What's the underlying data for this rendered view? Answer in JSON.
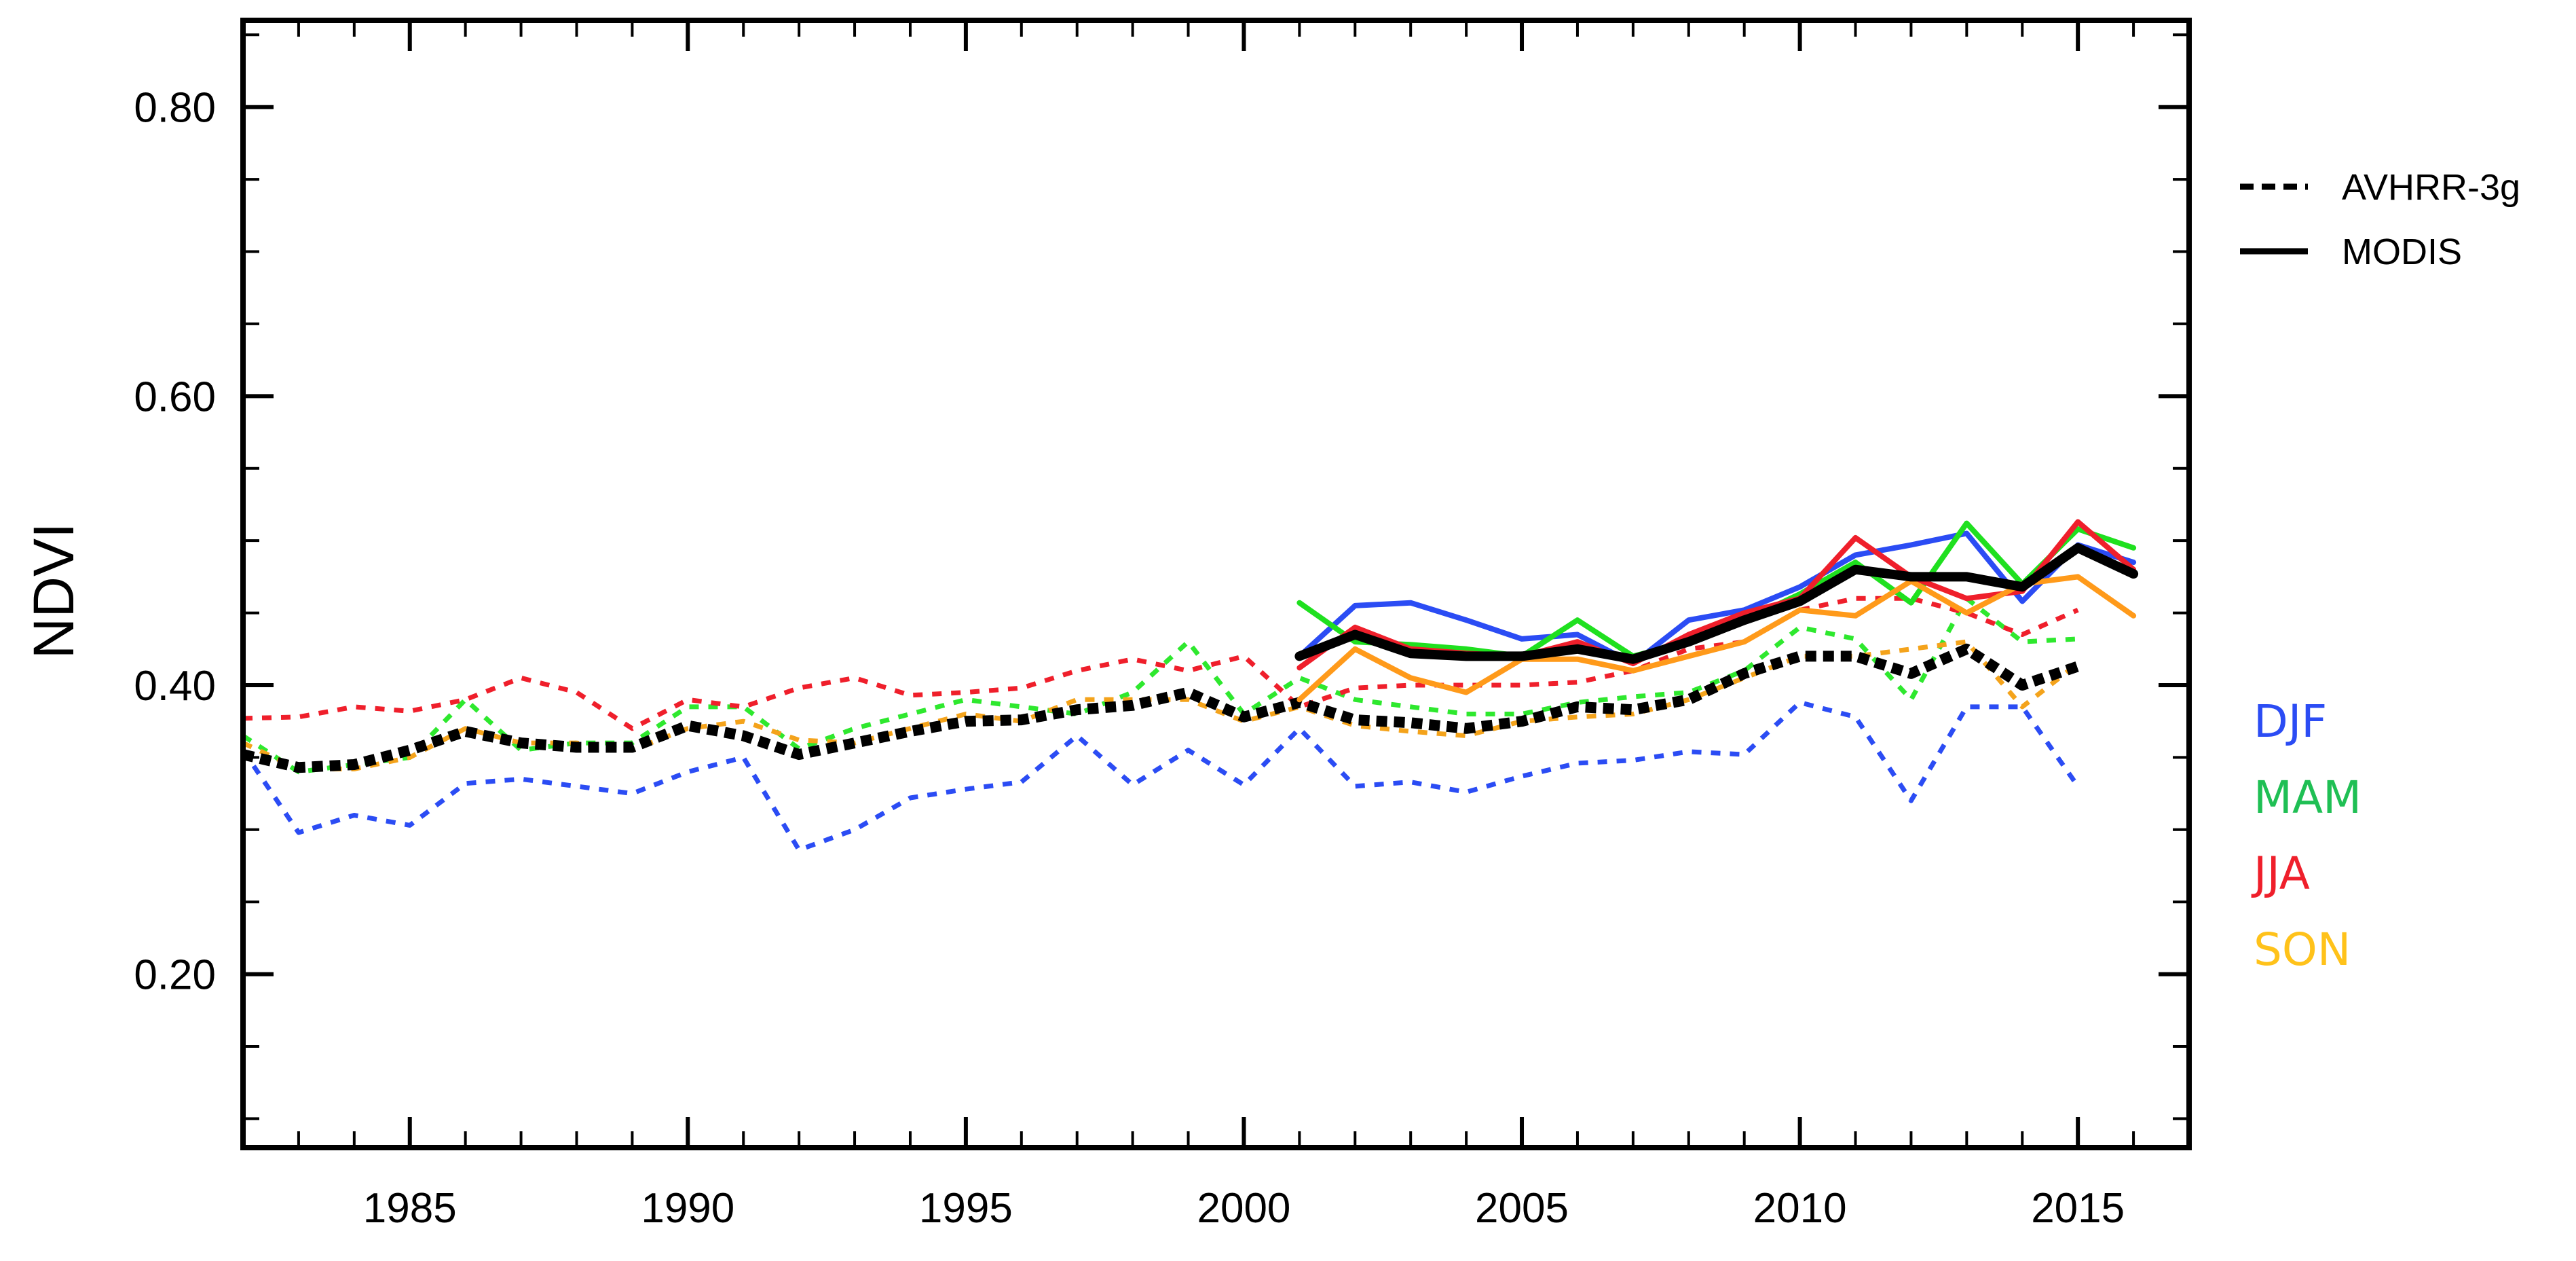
{
  "chart_data": {
    "type": "line",
    "title": "",
    "xlabel": "",
    "ylabel": "NDVI",
    "xlim": [
      1982,
      2017
    ],
    "ylim": [
      0.08,
      0.86
    ],
    "x_ticks": [
      1985,
      1990,
      1995,
      2000,
      2005,
      2010,
      2015
    ],
    "x_tick_labels": [
      "1985",
      "1990",
      "1995",
      "2000",
      "2005",
      "2010",
      "2015"
    ],
    "y_ticks": [
      0.2,
      0.4,
      0.6,
      0.8
    ],
    "y_tick_labels": [
      "0.20",
      "0.40",
      "0.60",
      "0.80"
    ],
    "y_minor_ticks": [
      0.1,
      0.15,
      0.25,
      0.3,
      0.35,
      0.45,
      0.5,
      0.55,
      0.65,
      0.7,
      0.75,
      0.85
    ],
    "grid": false,
    "legend": {
      "placement": "right",
      "entries": [
        {
          "label": "AVHRR-3g",
          "style": "dashed"
        },
        {
          "label": "MODIS",
          "style": "solid"
        }
      ]
    },
    "seasons": [
      {
        "label": "DJF",
        "color": "#2b4cf4"
      },
      {
        "label": "MAM",
        "color": "#1fbf54"
      },
      {
        "label": "JJA",
        "color": "#ef1f2b"
      },
      {
        "label": "SON",
        "color": "#ffc21a"
      }
    ],
    "series": [
      {
        "name": "AVHRR-3g DJF",
        "style": "dashed",
        "color": "#2b4cf4",
        "x": [
          1982,
          1983,
          1984,
          1985,
          1986,
          1987,
          1988,
          1989,
          1990,
          1991,
          1992,
          1993,
          1994,
          1995,
          1996,
          1997,
          1998,
          1999,
          2000,
          2001,
          2002,
          2003,
          2004,
          2005,
          2006,
          2007,
          2008,
          2009,
          2010,
          2011,
          2012,
          2013,
          2014,
          2015
        ],
        "values": [
          0.355,
          0.298,
          0.31,
          0.303,
          0.332,
          0.335,
          0.33,
          0.325,
          0.34,
          0.35,
          0.286,
          0.3,
          0.322,
          0.328,
          0.333,
          0.365,
          0.331,
          0.355,
          0.331,
          0.37,
          0.33,
          0.333,
          0.326,
          0.337,
          0.346,
          0.348,
          0.354,
          0.352,
          0.388,
          0.378,
          0.32,
          0.385,
          0.385,
          0.33
        ]
      },
      {
        "name": "AVHRR-3g MAM",
        "style": "dashed",
        "color": "#2ee82e",
        "x": [
          1982,
          1983,
          1984,
          1985,
          1986,
          1987,
          1988,
          1989,
          1990,
          1991,
          1992,
          1993,
          1994,
          1995,
          1996,
          1997,
          1998,
          1999,
          2000,
          2001,
          2002,
          2003,
          2004,
          2005,
          2006,
          2007,
          2008,
          2009,
          2010,
          2011,
          2012,
          2013,
          2014,
          2015
        ],
        "values": [
          0.365,
          0.34,
          0.345,
          0.35,
          0.39,
          0.355,
          0.36,
          0.36,
          0.385,
          0.385,
          0.356,
          0.37,
          0.38,
          0.39,
          0.385,
          0.38,
          0.395,
          0.43,
          0.38,
          0.405,
          0.39,
          0.385,
          0.38,
          0.38,
          0.388,
          0.392,
          0.395,
          0.41,
          0.44,
          0.432,
          0.39,
          0.46,
          0.43,
          0.432
        ]
      },
      {
        "name": "AVHRR-3g JJA",
        "style": "dashed",
        "color": "#ef1f2b",
        "x": [
          1982,
          1983,
          1984,
          1985,
          1986,
          1987,
          1988,
          1989,
          1990,
          1991,
          1992,
          1993,
          1994,
          1995,
          1996,
          1997,
          1998,
          1999,
          2000,
          2001,
          2002,
          2003,
          2004,
          2005,
          2006,
          2007,
          2008,
          2009,
          2010,
          2011,
          2012,
          2013,
          2014,
          2015
        ],
        "values": [
          0.377,
          0.378,
          0.385,
          0.382,
          0.39,
          0.405,
          0.395,
          0.37,
          0.39,
          0.385,
          0.398,
          0.405,
          0.393,
          0.395,
          0.398,
          0.41,
          0.418,
          0.41,
          0.42,
          0.385,
          0.398,
          0.4,
          0.4,
          0.4,
          0.402,
          0.41,
          0.425,
          0.43,
          0.452,
          0.46,
          0.46,
          0.45,
          0.435,
          0.452
        ]
      },
      {
        "name": "AVHRR-3g SON",
        "style": "dashed",
        "color": "#f4a31b",
        "x": [
          1982,
          1983,
          1984,
          1985,
          1986,
          1987,
          1988,
          1989,
          1990,
          1991,
          1992,
          1993,
          1994,
          1995,
          1996,
          1997,
          1998,
          1999,
          2000,
          2001,
          2002,
          2003,
          2004,
          2005,
          2006,
          2007,
          2008,
          2009,
          2010,
          2011,
          2012,
          2013,
          2014,
          2015
        ],
        "values": [
          0.36,
          0.342,
          0.342,
          0.35,
          0.37,
          0.36,
          0.36,
          0.355,
          0.37,
          0.375,
          0.362,
          0.36,
          0.37,
          0.38,
          0.375,
          0.39,
          0.39,
          0.39,
          0.375,
          0.385,
          0.372,
          0.368,
          0.365,
          0.375,
          0.378,
          0.38,
          0.39,
          0.405,
          0.42,
          0.42,
          0.425,
          0.43,
          0.385,
          0.415
        ]
      },
      {
        "name": "AVHRR-3g Annual",
        "style": "dashed-bold",
        "color": "#000000",
        "x": [
          1982,
          1983,
          1984,
          1985,
          1986,
          1987,
          1988,
          1989,
          1990,
          1991,
          1992,
          1993,
          1994,
          1995,
          1996,
          1997,
          1998,
          1999,
          2000,
          2001,
          2002,
          2003,
          2004,
          2005,
          2006,
          2007,
          2008,
          2009,
          2010,
          2011,
          2012,
          2013,
          2014,
          2015
        ],
        "values": [
          0.352,
          0.343,
          0.345,
          0.355,
          0.368,
          0.36,
          0.357,
          0.357,
          0.372,
          0.365,
          0.352,
          0.36,
          0.368,
          0.375,
          0.376,
          0.383,
          0.386,
          0.395,
          0.378,
          0.388,
          0.376,
          0.374,
          0.37,
          0.375,
          0.385,
          0.383,
          0.39,
          0.408,
          0.42,
          0.42,
          0.408,
          0.425,
          0.4,
          0.413
        ]
      },
      {
        "name": "MODIS DJF",
        "style": "solid",
        "color": "#2b4cf4",
        "x": [
          2001,
          2002,
          2003,
          2004,
          2005,
          2006,
          2007,
          2008,
          2009,
          2010,
          2011,
          2012,
          2013,
          2014,
          2015,
          2016
        ],
        "values": [
          0.42,
          0.455,
          0.457,
          0.445,
          0.432,
          0.435,
          0.415,
          0.445,
          0.452,
          0.468,
          0.49,
          0.497,
          0.505,
          0.458,
          0.497,
          0.485
        ]
      },
      {
        "name": "MODIS MAM",
        "style": "solid",
        "color": "#1fe01f",
        "x": [
          2001,
          2002,
          2003,
          2004,
          2005,
          2006,
          2007,
          2008,
          2009,
          2010,
          2011,
          2012,
          2013,
          2014,
          2015,
          2016
        ],
        "values": [
          0.457,
          0.43,
          0.428,
          0.425,
          0.42,
          0.445,
          0.42,
          0.43,
          0.445,
          0.463,
          0.485,
          0.457,
          0.512,
          0.47,
          0.508,
          0.495
        ]
      },
      {
        "name": "MODIS JJA",
        "style": "solid",
        "color": "#ef1f2b",
        "x": [
          2001,
          2002,
          2003,
          2004,
          2005,
          2006,
          2007,
          2008,
          2009,
          2010,
          2011,
          2012,
          2013,
          2014,
          2015,
          2016
        ],
        "values": [
          0.412,
          0.44,
          0.425,
          0.422,
          0.42,
          0.43,
          0.415,
          0.435,
          0.45,
          0.46,
          0.502,
          0.475,
          0.46,
          0.465,
          0.513,
          0.48
        ]
      },
      {
        "name": "MODIS SON",
        "style": "solid",
        "color": "#ff9a1a",
        "x": [
          2001,
          2002,
          2003,
          2004,
          2005,
          2006,
          2007,
          2008,
          2009,
          2010,
          2011,
          2012,
          2013,
          2014,
          2015,
          2016
        ],
        "values": [
          0.39,
          0.425,
          0.405,
          0.395,
          0.418,
          0.418,
          0.41,
          0.42,
          0.43,
          0.452,
          0.448,
          0.472,
          0.45,
          0.47,
          0.475,
          0.448
        ]
      },
      {
        "name": "MODIS Annual",
        "style": "solid-bold",
        "color": "#000000",
        "x": [
          2001,
          2002,
          2003,
          2004,
          2005,
          2006,
          2007,
          2008,
          2009,
          2010,
          2011,
          2012,
          2013,
          2014,
          2015,
          2016
        ],
        "values": [
          0.42,
          0.435,
          0.422,
          0.42,
          0.42,
          0.425,
          0.418,
          0.43,
          0.445,
          0.458,
          0.48,
          0.475,
          0.475,
          0.468,
          0.495,
          0.477
        ]
      }
    ]
  }
}
